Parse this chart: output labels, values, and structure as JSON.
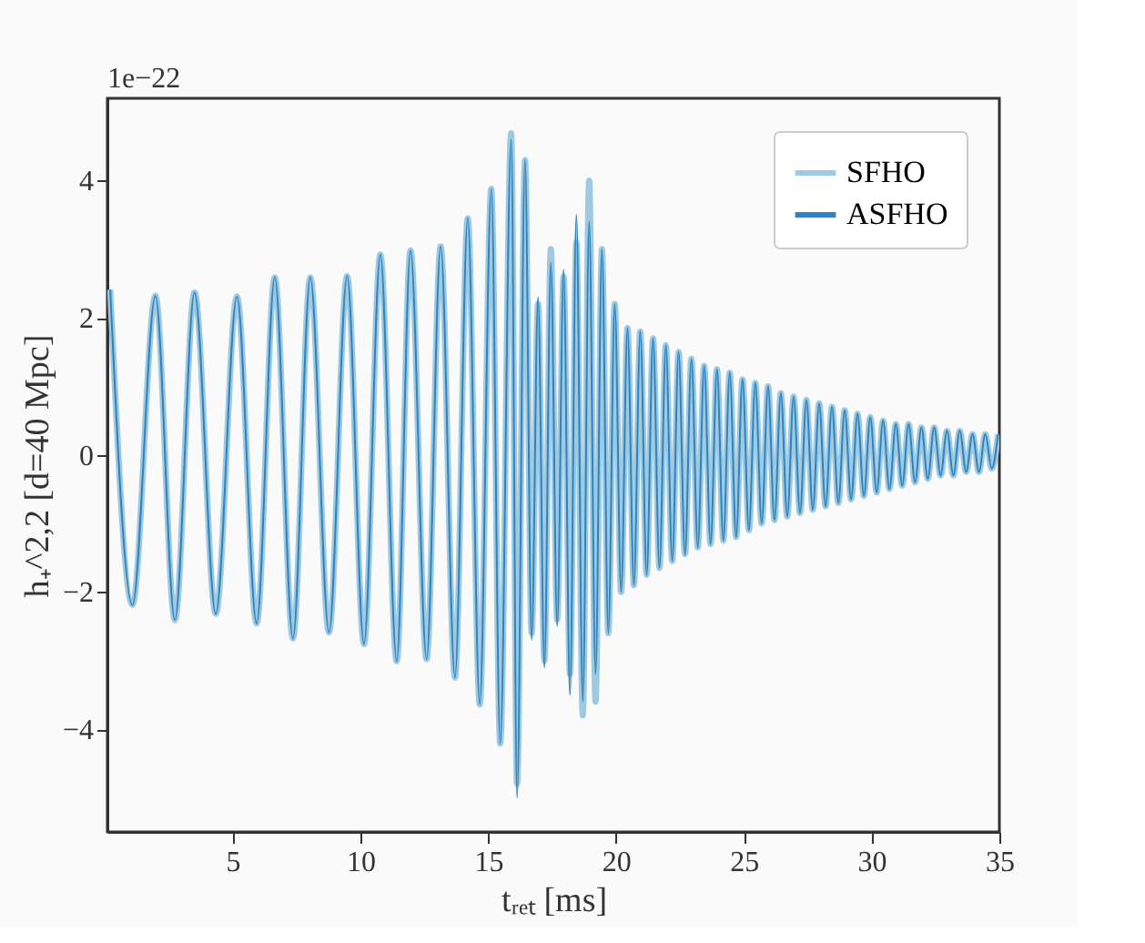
{
  "chart_data": {
    "type": "line",
    "xlabel": "tᵣₑₜ [ms]",
    "ylabel": "h₊^2,2 [d=40 Mpc]",
    "annotations": [
      "1e−22"
    ],
    "xlim": [
      0.1,
      35
    ],
    "xticks": [
      5,
      10,
      15,
      20,
      25,
      30,
      35
    ],
    "ylim": [
      -5.5,
      5.2
    ],
    "yticks": [
      -4,
      -2,
      0,
      2,
      4
    ],
    "grid": false,
    "legend": "top right",
    "line_style": "solid",
    "marker": "none",
    "x": [
      0.21,
      1.08,
      1.98,
      2.74,
      3.51,
      4.34,
      5.17,
      5.94,
      6.65,
      7.36,
      8.04,
      8.77,
      9.48,
      10.14,
      10.78,
      11.42,
      11.96,
      12.59,
      13.14,
      13.7,
      14.2,
      14.67,
      15.12,
      15.47,
      15.9,
      16.13,
      16.44,
      16.7,
      16.95,
      17.2,
      17.45,
      17.7,
      17.95,
      18.2,
      18.45,
      18.7,
      18.95,
      19.2,
      19.45,
      19.7,
      19.95,
      20.2,
      20.45,
      20.7,
      20.95,
      21.2,
      21.45,
      21.7,
      21.95,
      22.2,
      22.45,
      22.7,
      22.95,
      23.2,
      23.45,
      23.7,
      23.95,
      24.2,
      24.45,
      24.7,
      24.95,
      25.2,
      25.45,
      25.7,
      25.95,
      26.2,
      26.45,
      26.7,
      26.95,
      27.2,
      27.45,
      27.7,
      27.95,
      28.2,
      28.45,
      28.7,
      28.95,
      29.2,
      29.45,
      29.7,
      29.95,
      30.2,
      30.45,
      30.7,
      30.95,
      31.2,
      31.45,
      31.7,
      31.95,
      32.2,
      32.45,
      32.7,
      32.95,
      33.2,
      33.45,
      33.7,
      33.95,
      34.2,
      34.45,
      34.7,
      34.95
    ],
    "series": [
      {
        "name": "SFHO",
        "color": "#9ecae1",
        "values": [
          2.41,
          -2.19,
          2.32,
          -2.41,
          2.37,
          -2.32,
          2.31,
          -2.46,
          2.59,
          -2.68,
          2.59,
          -2.59,
          2.61,
          -2.76,
          2.92,
          -3.01,
          2.98,
          -2.98,
          3.04,
          -3.25,
          3.45,
          -3.64,
          3.88,
          -4.21,
          4.69,
          -4.8,
          4.3,
          -2.6,
          2.2,
          -3.0,
          3.0,
          -2.4,
          2.6,
          -3.2,
          3.1,
          -3.8,
          4.0,
          -3.6,
          3.0,
          -2.6,
          2.2,
          -2.0,
          1.85,
          -1.9,
          1.8,
          -1.75,
          1.7,
          -1.65,
          1.6,
          -1.55,
          1.5,
          -1.45,
          1.4,
          -1.35,
          1.3,
          -1.3,
          1.25,
          -1.25,
          1.2,
          -1.2,
          1.1,
          -1.1,
          1.05,
          -1.0,
          1.0,
          -0.95,
          0.9,
          -0.9,
          0.85,
          -0.85,
          0.8,
          -0.8,
          0.75,
          -0.75,
          0.7,
          -0.7,
          0.65,
          -0.65,
          0.6,
          -0.6,
          0.55,
          -0.55,
          0.5,
          -0.5,
          0.45,
          -0.45,
          0.45,
          -0.4,
          0.4,
          -0.35,
          0.4,
          -0.3,
          0.35,
          -0.3,
          0.35,
          -0.25,
          0.3,
          -0.25,
          0.3,
          -0.2,
          0.3
        ]
      },
      {
        "name": "ASFHO",
        "color": "#3182bd",
        "values": [
          2.41,
          -2.19,
          2.32,
          -2.41,
          2.37,
          -2.32,
          2.31,
          -2.46,
          2.59,
          -2.68,
          2.59,
          -2.59,
          2.61,
          -2.76,
          2.92,
          -3.01,
          2.98,
          -2.98,
          3.04,
          -3.25,
          3.45,
          -3.64,
          3.88,
          -4.21,
          4.6,
          -5.0,
          4.3,
          -2.7,
          2.3,
          -3.1,
          2.8,
          -2.5,
          2.7,
          -3.5,
          3.5,
          -3.6,
          3.4,
          -3.2,
          3.0,
          -2.6,
          2.2,
          -2.0,
          1.85,
          -1.9,
          1.8,
          -1.75,
          1.7,
          -1.65,
          1.6,
          -1.55,
          1.5,
          -1.45,
          1.4,
          -1.35,
          1.3,
          -1.3,
          1.25,
          -1.25,
          1.2,
          -1.2,
          1.1,
          -1.1,
          1.05,
          -1.0,
          1.0,
          -0.95,
          0.9,
          -0.9,
          0.85,
          -0.85,
          0.8,
          -0.8,
          0.75,
          -0.75,
          0.7,
          -0.7,
          0.65,
          -0.65,
          0.6,
          -0.6,
          0.55,
          -0.55,
          0.5,
          -0.5,
          0.45,
          -0.45,
          0.45,
          -0.4,
          0.4,
          -0.35,
          0.4,
          -0.3,
          0.35,
          -0.3,
          0.35,
          -0.25,
          0.3,
          -0.25,
          0.3,
          -0.2,
          0.3
        ]
      }
    ]
  }
}
